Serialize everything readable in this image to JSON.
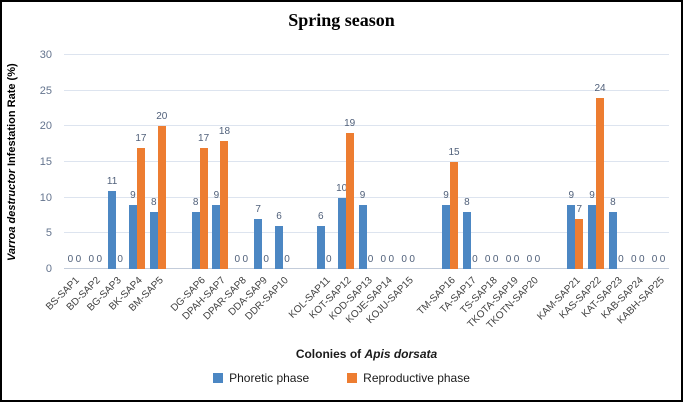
{
  "chart_data": {
    "type": "bar",
    "title": "Spring season",
    "xlabel": "Colonies of Apis dorsata",
    "xlabel_prefix": "Colonies of ",
    "xlabel_italic": "Apis dorsata",
    "ylabel": "Varroa destructor Infestation Rate (%)",
    "ylabel_italic": "Varroa destructor",
    "ylabel_rest": " Infestation Rate (%)",
    "ylim": [
      0,
      30
    ],
    "yticks": [
      0,
      5,
      10,
      15,
      20,
      25,
      30
    ],
    "grid": "horizontal",
    "legend_position": "bottom",
    "group_size": 5,
    "categories": [
      "BS-SAP1",
      "BD-SAP2",
      "BG-SAP3",
      "BK-SAP4",
      "BM-SAP5",
      "DG-SAP6",
      "DPAH-SAP7",
      "DPAR-SAP8",
      "DDA-SAP9",
      "DDR-SAP10",
      "KOL-SAP11",
      "KOT-SAP12",
      "KOD-SAP13",
      "KOJE-SAP14",
      "KOJU-SAP15",
      "TM-SAP16",
      "TA-SAP17",
      "TS-SAP18",
      "TKOTA-SAP19",
      "TKOTN-SAP20",
      "KAM-SAP21",
      "KAS-SAP22",
      "KAT-SAP23",
      "KAB-SAP24",
      "KABH-SAP25"
    ],
    "series": [
      {
        "name": "Phoretic phase",
        "color": "#4c87c3",
        "values": [
          0,
          0,
          11,
          9,
          8,
          8,
          9,
          0,
          7,
          6,
          6,
          10,
          9,
          0,
          0,
          9,
          8,
          0,
          0,
          0,
          9,
          9,
          8,
          0,
          0
        ]
      },
      {
        "name": "Reproductive phase",
        "color": "#ed7d31",
        "values": [
          0,
          0,
          0,
          17,
          20,
          17,
          18,
          0,
          0,
          0,
          0,
          19,
          0,
          0,
          0,
          15,
          0,
          0,
          0,
          0,
          7,
          24,
          0,
          0,
          0
        ]
      }
    ],
    "colors": {
      "gridline": "#dde4ef",
      "axis_line": "#c3ccda",
      "tick_label": "#64748e",
      "data_label": "#50607a",
      "category_label": "#3f3f3f"
    }
  }
}
